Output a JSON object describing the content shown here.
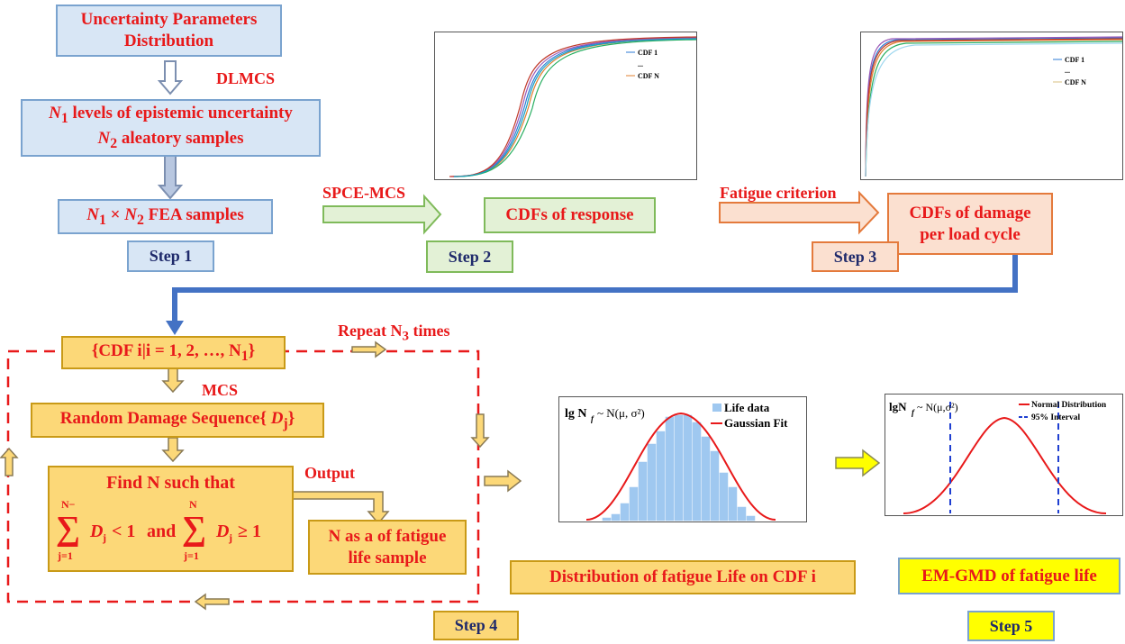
{
  "step1": {
    "box_a": [
      "Uncertainty Parameters",
      "Distribution"
    ],
    "label": "DLMCS",
    "box_b_line1": "levels of epistemic uncertainty",
    "box_b_line2": "aleatory samples",
    "n1": "N",
    "n1_sub": "1",
    "box_c_suffix": "FEA samples",
    "step": "Step 1"
  },
  "step2": {
    "arrow_label": "SPCE-MCS",
    "box": "CDFs of response",
    "step": "Step 2",
    "legend": [
      "CDF 1",
      "...",
      "CDF N"
    ]
  },
  "step3": {
    "arrow_label": "Fatigue criterion",
    "box": [
      "CDFs of damage",
      "per load cycle"
    ],
    "step": "Step 3",
    "legend": [
      "CDF 1",
      "...",
      "CDF N"
    ]
  },
  "step4": {
    "cdf_set": "{CDF i|i = 1, 2, …, N",
    "repeat": "Repeat N",
    "repeat_suffix": "times",
    "mcs": "MCS",
    "random_damage": "Random Damage Sequence{",
    "find": "Find N such that",
    "sum_text": "D",
    "and": "and",
    "lt": "< 1",
    "ge": "≥ 1",
    "output": "Output",
    "n_sample": [
      "N as a of fatigue",
      "life sample"
    ],
    "dist_label": "Distribution of fatigue Life on CDF i",
    "step": "Step 4",
    "hist_title": "lg N",
    "hist_dist": "~ N(μ, σ²)",
    "hist_legend": [
      "Life data",
      "Gaussian Fit"
    ]
  },
  "step5": {
    "label": "EM-GMD of fatigue life",
    "step": "Step 5",
    "title": "lgN",
    "dist": "~ N(μ,σ²)",
    "legend": [
      "Normal Distribution",
      "95% Interval"
    ]
  }
}
